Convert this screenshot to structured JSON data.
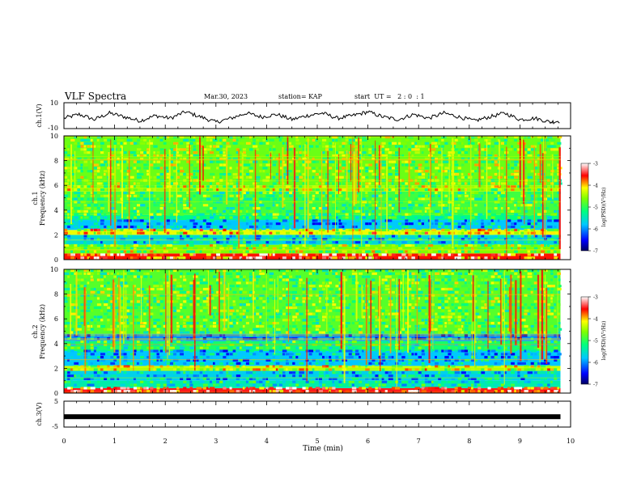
{
  "header": {
    "title": "VLF Spectra",
    "date": "Mar.30, 2023",
    "station": "station= KAP",
    "start_ut": "start  UT =   2 : 0  : 1"
  },
  "chart_data": [
    {
      "type": "line",
      "name": "ch.1 waveform",
      "ylabel": "ch.1(V)",
      "ylim": [
        -10,
        10
      ],
      "yticks": [
        "10",
        "-10"
      ],
      "xlim": [
        0,
        10
      ],
      "x": [
        0,
        0.3,
        0.6,
        0.9,
        1.2,
        1.5,
        1.8,
        2.1,
        2.4,
        2.7,
        3.0,
        3.3,
        3.6,
        3.9,
        4.2,
        4.5,
        4.8,
        5.1,
        5.4,
        5.7,
        6.0,
        6.3,
        6.6,
        6.9,
        7.2,
        7.5,
        7.8,
        8.1,
        8.4,
        8.7,
        9.0,
        9.3,
        9.6,
        9.8
      ],
      "y": [
        -2,
        1,
        -3,
        2,
        -1,
        -4,
        0,
        -2,
        3,
        -1,
        -5,
        -2,
        2,
        -1,
        1,
        -3,
        0,
        2,
        -2,
        0,
        3,
        -1,
        -3,
        1,
        -2,
        2,
        -1,
        -4,
        -1,
        2,
        -3,
        -2,
        -5,
        -4
      ]
    },
    {
      "type": "heatmap",
      "name": "ch.1 spectrogram",
      "ylabel": "ch.1\nFrequency (kHz)",
      "ylim": [
        0,
        10
      ],
      "yticks": [
        "0",
        "2",
        "4",
        "6",
        "8",
        "10"
      ],
      "xlim": [
        0,
        9.8
      ],
      "colorbar": {
        "label": "log(PSD)(V²/Hz)",
        "range": [
          -7,
          -3
        ],
        "ticks": [
          "-3",
          "-4",
          "-5",
          "-6",
          "-7"
        ]
      },
      "bands_khz": [
        {
          "f": [
            0,
            0.5
          ],
          "level": -3.6
        },
        {
          "f": [
            0.5,
            1.2
          ],
          "level": -4.6
        },
        {
          "f": [
            1.2,
            2.0
          ],
          "level": -5.6
        },
        {
          "f": [
            2.0,
            2.4
          ],
          "level": -4.2
        },
        {
          "f": [
            2.4,
            3.2
          ],
          "level": -5.8
        },
        {
          "f": [
            3.2,
            3.6
          ],
          "level": -5.2
        },
        {
          "f": [
            3.6,
            5.5
          ],
          "level": -4.9
        },
        {
          "f": [
            5.5,
            6.0
          ],
          "level": -4.5
        },
        {
          "f": [
            6.0,
            10
          ],
          "level": -4.7
        }
      ]
    },
    {
      "type": "heatmap",
      "name": "ch.2 spectrogram",
      "ylabel": "ch.2\nFrequency (kHz)",
      "ylim": [
        0,
        10
      ],
      "yticks": [
        "0",
        "2",
        "4",
        "6",
        "8",
        "10"
      ],
      "xlim": [
        0,
        9.8
      ],
      "colorbar": {
        "label": "log(PSD)(V²/Hz)",
        "range": [
          -7,
          -3
        ],
        "ticks": [
          "-3",
          "-4",
          "-5",
          "-6",
          "-7"
        ]
      },
      "bands_khz": [
        {
          "f": [
            0,
            0.4
          ],
          "level": -3.5
        },
        {
          "f": [
            0.4,
            1.0
          ],
          "level": -5.4
        },
        {
          "f": [
            1.0,
            1.8
          ],
          "level": -5.7
        },
        {
          "f": [
            1.8,
            2.2
          ],
          "level": -4.4
        },
        {
          "f": [
            2.2,
            3.4
          ],
          "level": -5.8
        },
        {
          "f": [
            3.4,
            4.2
          ],
          "level": -5.1
        },
        {
          "f": [
            4.2,
            4.8
          ],
          "level": -6.0
        },
        {
          "f": [
            4.8,
            10
          ],
          "level": -4.8
        }
      ]
    },
    {
      "type": "line",
      "name": "ch.3 waveform",
      "ylabel": "ch.3(V)",
      "ylim": [
        -5,
        5
      ],
      "yticks": [
        "5",
        "-5"
      ],
      "xlim": [
        0,
        10
      ],
      "x": [
        0,
        9.8
      ],
      "y": [
        -1,
        -1
      ]
    }
  ],
  "x_axis": {
    "label": "Time (min)",
    "ticks": [
      "0",
      "1",
      "2",
      "3",
      "4",
      "5",
      "6",
      "7",
      "8",
      "9",
      "10"
    ]
  }
}
